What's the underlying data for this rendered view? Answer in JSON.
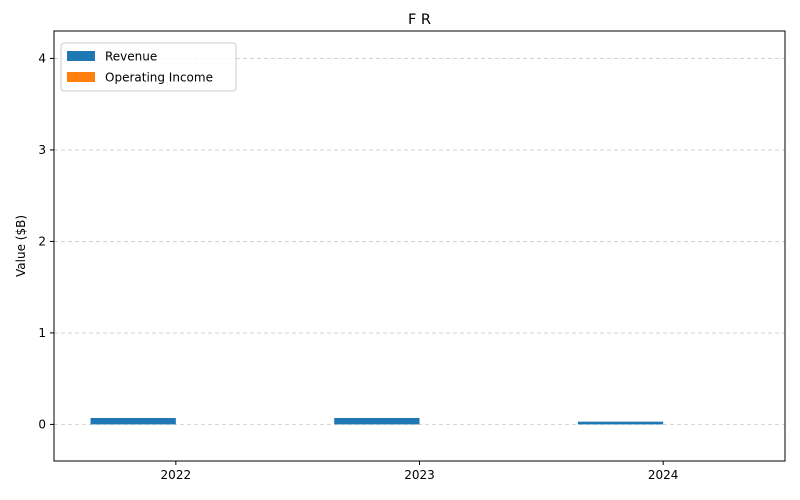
{
  "chart_data": {
    "type": "bar",
    "title": "F R",
    "xlabel": "",
    "ylabel": "Value ($B)",
    "categories": [
      "2022",
      "2023",
      "2024"
    ],
    "series": [
      {
        "name": "Revenue",
        "values": [
          0.07,
          0.07,
          0.03
        ],
        "color": "#1f77b4"
      },
      {
        "name": "Operating Income",
        "values": [
          0,
          0,
          0
        ],
        "color": "#ff7f0e"
      }
    ],
    "ylim": [
      -0.4,
      4.3
    ],
    "yticks": [
      0,
      1,
      2,
      3,
      4
    ],
    "grid": true,
    "legend_position": "top-left"
  }
}
